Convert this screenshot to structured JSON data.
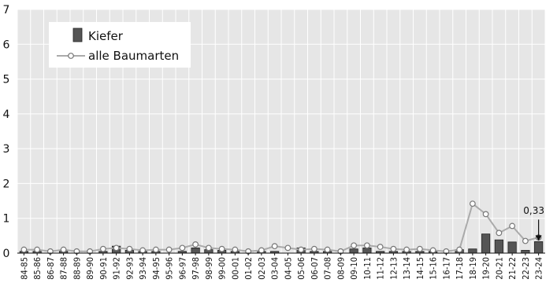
{
  "chart_data": {
    "type": "bar",
    "categories": [
      "84-85",
      "85-86",
      "86-87",
      "87-88",
      "88-89",
      "89-90",
      "90-91",
      "91-92",
      "92-93",
      "93-94",
      "94-95",
      "95-96",
      "96-97",
      "97-98",
      "98-99",
      "99-00",
      "00-01",
      "01-02",
      "02-03",
      "03-04",
      "04-05",
      "05-06",
      "06-07",
      "07-08",
      "08-09",
      "09-10",
      "10-11",
      "11-12",
      "12-13",
      "13-14",
      "14-15",
      "15-16",
      "16-17",
      "17-18",
      "18-19",
      "19-20",
      "20-21",
      "21-22",
      "22-23",
      "23-24"
    ],
    "series": [
      {
        "name": "Kiefer",
        "kind": "bar",
        "color": "#555555",
        "values": [
          0.05,
          0.05,
          0,
          0.08,
          0,
          0,
          0.05,
          0.2,
          0.08,
          0.05,
          0.05,
          0,
          0.05,
          0.15,
          0.1,
          0.08,
          0.05,
          0,
          0.05,
          0.05,
          0,
          0.15,
          0.05,
          0.05,
          0,
          0.12,
          0.15,
          0.05,
          0.05,
          0.05,
          0.05,
          0.05,
          0,
          0.1,
          0.12,
          0.55,
          0.38,
          0.32,
          0.08,
          0.33
        ]
      },
      {
        "name": "alle Baumarten",
        "kind": "line",
        "color": "#aaaaaa",
        "values": [
          0.1,
          0.1,
          0.05,
          0.1,
          0.05,
          0.05,
          0.12,
          0.15,
          0.12,
          0.08,
          0.1,
          0.1,
          0.15,
          0.25,
          0.15,
          0.12,
          0.1,
          0.05,
          0.08,
          0.2,
          0.15,
          0.1,
          0.12,
          0.1,
          0.05,
          0.22,
          0.22,
          0.18,
          0.12,
          0.1,
          0.12,
          0.08,
          0.05,
          0.1,
          1.42,
          1.12,
          0.58,
          0.78,
          0.35,
          0.45
        ]
      }
    ],
    "title": "",
    "xlabel": "",
    "ylabel": "",
    "ylim": [
      0,
      7
    ],
    "yticks": [
      0,
      1,
      2,
      3,
      4,
      5,
      6,
      7
    ],
    "grid": true,
    "legend": "top-left",
    "annotation": {
      "category": "23-24",
      "text": "0,33"
    }
  }
}
